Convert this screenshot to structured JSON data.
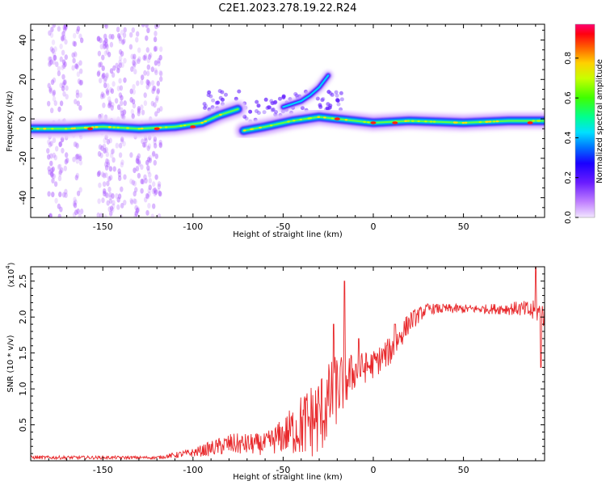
{
  "title": "C2E1.2023.278.19.22.R24",
  "chart_data": [
    {
      "type": "heatmap",
      "xlabel": "Height of straight line (km)",
      "ylabel": "Frequency (Hz)",
      "xlim": [
        -190,
        95
      ],
      "ylim": [
        -50,
        48
      ],
      "x_ticks": [
        -150,
        -100,
        -50,
        0,
        50
      ],
      "y_ticks": [
        -40,
        -20,
        0,
        20,
        40
      ],
      "colorbar": {
        "label": "Normalized spectral amplitude",
        "range": [
          0,
          0.97
        ],
        "ticks": [
          0.0,
          0.2,
          0.4,
          0.6,
          0.8
        ]
      },
      "ridge": [
        {
          "x": -190,
          "y": -5
        },
        {
          "x": -170,
          "y": -5
        },
        {
          "x": -150,
          "y": -4
        },
        {
          "x": -130,
          "y": -5
        },
        {
          "x": -110,
          "y": -4
        },
        {
          "x": -95,
          "y": -2
        },
        {
          "x": -85,
          "y": 2
        },
        {
          "x": -75,
          "y": 5
        },
        {
          "x": -72,
          "y": -6
        },
        {
          "x": -60,
          "y": -4
        },
        {
          "x": -45,
          "y": -1
        },
        {
          "x": -30,
          "y": 1
        },
        {
          "x": -20,
          "y": 0
        },
        {
          "x": -10,
          "y": -1
        },
        {
          "x": 0,
          "y": -2
        },
        {
          "x": 20,
          "y": -1
        },
        {
          "x": 50,
          "y": -2
        },
        {
          "x": 75,
          "y": -1
        },
        {
          "x": 95,
          "y": -1
        }
      ],
      "upper_branch": [
        {
          "x": -50,
          "y": 6
        },
        {
          "x": -40,
          "y": 9
        },
        {
          "x": -35,
          "y": 12
        },
        {
          "x": -30,
          "y": 16
        },
        {
          "x": -25,
          "y": 22
        }
      ],
      "peaks": [
        {
          "x": -157,
          "y": -5
        },
        {
          "x": -120,
          "y": -5
        },
        {
          "x": -100,
          "y": -4
        },
        {
          "x": -20,
          "y": 0
        },
        {
          "x": 0,
          "y": -2
        },
        {
          "x": 12,
          "y": -2
        },
        {
          "x": 87,
          "y": -2
        }
      ]
    },
    {
      "type": "line",
      "xlabel": "Height of straight line (km)",
      "ylabel": "SNR (10 * v/v)",
      "scale_label": "(x10",
      "scale_exp": "4",
      "scale_close": ")",
      "xlim": [
        -190,
        95
      ],
      "ylim": [
        0,
        2.7
      ],
      "x_ticks": [
        -150,
        -100,
        -50,
        0,
        50
      ],
      "y_ticks": [
        0.5,
        1.0,
        1.5,
        2.0,
        2.5
      ],
      "color": "#e8282b",
      "envelope": [
        {
          "x": -190,
          "base": 0.04,
          "amp": 0.05
        },
        {
          "x": -120,
          "base": 0.04,
          "amp": 0.04
        },
        {
          "x": -100,
          "base": 0.1,
          "amp": 0.12
        },
        {
          "x": -80,
          "base": 0.2,
          "amp": 0.3
        },
        {
          "x": -60,
          "base": 0.2,
          "amp": 0.3
        },
        {
          "x": -50,
          "base": 0.3,
          "amp": 0.5
        },
        {
          "x": -40,
          "base": 0.4,
          "amp": 0.9
        },
        {
          "x": -30,
          "base": 0.5,
          "amp": 1.2
        },
        {
          "x": -20,
          "base": 0.9,
          "amp": 1.0
        },
        {
          "x": -10,
          "base": 1.2,
          "amp": 0.5
        },
        {
          "x": 0,
          "base": 1.3,
          "amp": 0.4
        },
        {
          "x": 10,
          "base": 1.5,
          "amp": 0.4
        },
        {
          "x": 20,
          "base": 1.9,
          "amp": 0.3
        },
        {
          "x": 30,
          "base": 2.1,
          "amp": 0.15
        },
        {
          "x": 60,
          "base": 2.1,
          "amp": 0.12
        },
        {
          "x": 80,
          "base": 2.1,
          "amp": 0.2
        },
        {
          "x": 95,
          "base": 2.0,
          "amp": 0.4
        }
      ],
      "spikes": [
        {
          "x": -16,
          "y": 2.5
        },
        {
          "x": -22,
          "y": 1.9
        },
        {
          "x": -8,
          "y": 1.7
        },
        {
          "x": 12,
          "y": 1.9
        },
        {
          "x": 90,
          "y": 2.7
        },
        {
          "x": 93,
          "y": 1.3
        }
      ]
    }
  ]
}
